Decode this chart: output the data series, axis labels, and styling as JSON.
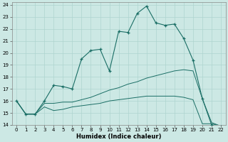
{
  "xlabel": "Humidex (Indice chaleur)",
  "xlim": [
    -0.5,
    22.5
  ],
  "ylim": [
    14,
    24.2
  ],
  "yticks": [
    14,
    15,
    16,
    17,
    18,
    19,
    20,
    21,
    22,
    23,
    24
  ],
  "xticks": [
    0,
    1,
    2,
    3,
    4,
    5,
    6,
    7,
    8,
    9,
    10,
    11,
    12,
    13,
    14,
    15,
    16,
    17,
    18,
    19,
    20,
    21,
    22
  ],
  "bg_color": "#cce8e4",
  "line_color": "#1a6e65",
  "grid_color": "#aed4cf",
  "main_line_x": [
    0,
    1,
    2,
    3,
    4,
    5,
    6,
    7,
    8,
    9,
    10,
    11,
    12,
    13,
    14,
    15,
    16,
    17,
    18,
    19,
    20,
    21,
    22
  ],
  "main_line_y": [
    16.0,
    14.9,
    14.9,
    16.0,
    17.3,
    17.2,
    17.0,
    19.5,
    20.2,
    20.3,
    18.5,
    21.8,
    21.7,
    23.3,
    23.9,
    22.5,
    22.3,
    22.4,
    21.2,
    19.4,
    16.2,
    14.0,
    13.9
  ],
  "line2_x": [
    0,
    1,
    2,
    3,
    4,
    5,
    6,
    7,
    8,
    9,
    10,
    11,
    12,
    13,
    14,
    15,
    16,
    17,
    18,
    19,
    20,
    21,
    22
  ],
  "line2_y": [
    16.0,
    14.9,
    14.9,
    15.8,
    15.8,
    15.9,
    15.9,
    16.1,
    16.3,
    16.6,
    16.9,
    17.1,
    17.4,
    17.6,
    17.9,
    18.1,
    18.3,
    18.5,
    18.6,
    18.5,
    16.2,
    14.2,
    13.9
  ],
  "line3_x": [
    0,
    1,
    2,
    3,
    4,
    5,
    6,
    7,
    8,
    9,
    10,
    11,
    12,
    13,
    14,
    15,
    16,
    17,
    18,
    19,
    20,
    21,
    22
  ],
  "line3_y": [
    16.0,
    14.9,
    14.9,
    15.5,
    15.2,
    15.3,
    15.5,
    15.6,
    15.7,
    15.8,
    16.0,
    16.1,
    16.2,
    16.3,
    16.4,
    16.4,
    16.4,
    16.4,
    16.3,
    16.1,
    14.1,
    14.1,
    13.9
  ]
}
